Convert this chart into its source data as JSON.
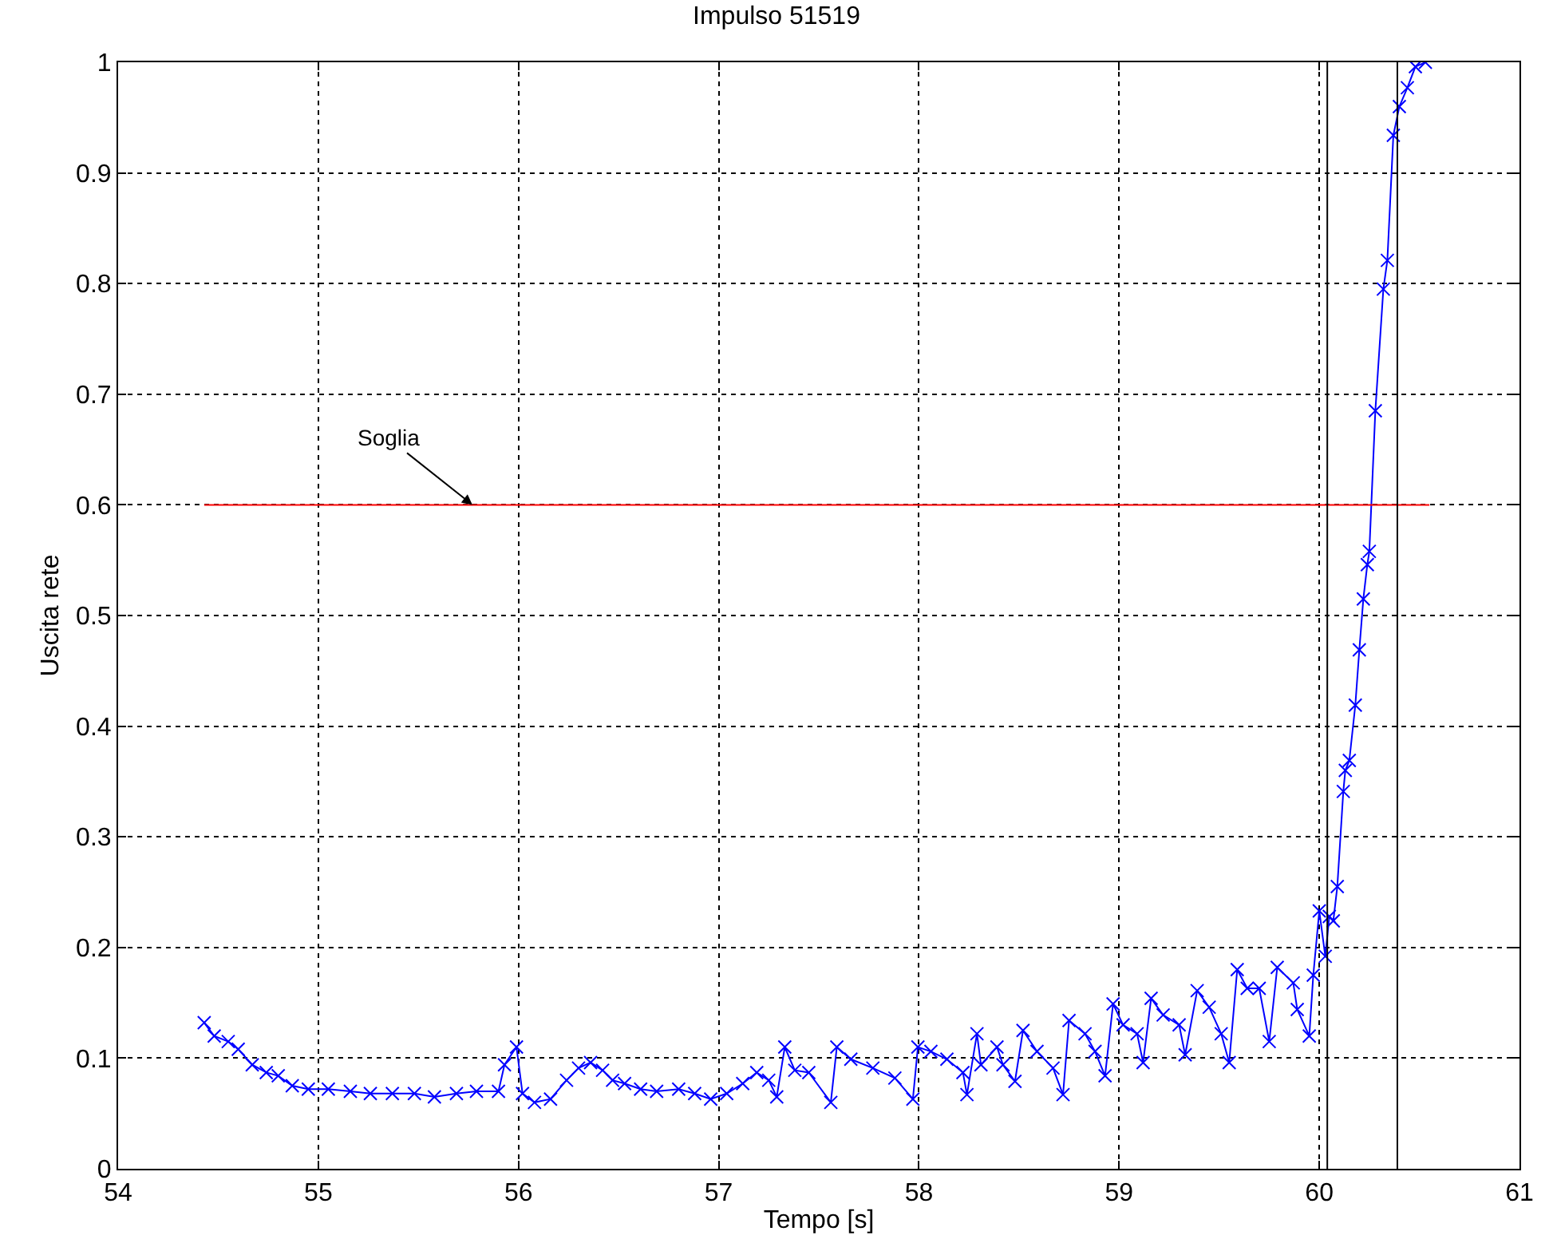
{
  "chart_data": {
    "type": "line",
    "title": "Impulso 51519",
    "xlabel": "Tempo [s]",
    "ylabel": "Uscita rete",
    "xlim": [
      54,
      61
    ],
    "xticks": [
      54,
      55,
      56,
      57,
      58,
      59,
      60,
      61
    ],
    "ylim": [
      0,
      1
    ],
    "yticks": [
      0,
      0.1,
      0.2,
      0.3,
      0.4,
      0.5,
      0.6,
      0.7,
      0.8,
      0.9,
      1
    ],
    "grid": true,
    "marker": "cross",
    "line_style": "solid",
    "annotations": [
      {
        "text": "Soglia",
        "x": 55.77,
        "y": 0.6
      }
    ],
    "ref_lines": [
      {
        "axis": "x",
        "value": 60.04,
        "label": null,
        "color": "#000000"
      },
      {
        "axis": "x",
        "value": 60.39,
        "label": null,
        "color": "#000000"
      }
    ],
    "series": [
      {
        "color": "#0000ff",
        "x": [
          54.43,
          54.48,
          54.55,
          54.6,
          54.67,
          54.74,
          54.8,
          54.87,
          54.95,
          55.05,
          55.16,
          55.26,
          55.37,
          55.48,
          55.58,
          55.69,
          55.79,
          55.9,
          55.93,
          55.99,
          56.02,
          56.08,
          56.16,
          56.24,
          56.3,
          56.36,
          56.42,
          56.47,
          56.53,
          56.61,
          56.69,
          56.8,
          56.88,
          56.96,
          57.04,
          57.12,
          57.19,
          57.25,
          57.29,
          57.33,
          57.38,
          57.45,
          57.56,
          57.59,
          57.66,
          57.77,
          57.88,
          57.97,
          57.995,
          58.06,
          58.14,
          58.22,
          58.24,
          58.29,
          58.31,
          58.39,
          58.42,
          58.48,
          58.52,
          58.59,
          58.67,
          58.72,
          58.75,
          58.83,
          58.88,
          58.93,
          58.97,
          59.02,
          59.09,
          59.12,
          59.16,
          59.22,
          59.3,
          59.33,
          59.39,
          59.45,
          59.51,
          59.55,
          59.59,
          59.64,
          59.7,
          59.75,
          59.79,
          59.87,
          59.89,
          59.95,
          59.97,
          60.0,
          60.03,
          60.05,
          60.07,
          60.09,
          60.12,
          60.13,
          60.15,
          60.18,
          60.2,
          60.22,
          60.24,
          60.25,
          60.28,
          60.32,
          60.34,
          60.37,
          60.4,
          60.44,
          60.48,
          60.53
        ],
        "values": [
          0.132,
          0.12,
          0.115,
          0.108,
          0.094,
          0.087,
          0.084,
          0.075,
          0.072,
          0.072,
          0.07,
          0.068,
          0.068,
          0.068,
          0.065,
          0.068,
          0.07,
          0.07,
          0.094,
          0.11,
          0.068,
          0.06,
          0.063,
          0.08,
          0.091,
          0.096,
          0.089,
          0.08,
          0.077,
          0.072,
          0.07,
          0.072,
          0.068,
          0.063,
          0.068,
          0.077,
          0.087,
          0.08,
          0.065,
          0.11,
          0.089,
          0.087,
          0.06,
          0.11,
          0.099,
          0.091,
          0.082,
          0.063,
          0.11,
          0.106,
          0.099,
          0.087,
          0.067,
          0.122,
          0.094,
          0.11,
          0.094,
          0.079,
          0.125,
          0.106,
          0.091,
          0.067,
          0.134,
          0.122,
          0.106,
          0.084,
          0.149,
          0.13,
          0.122,
          0.096,
          0.154,
          0.139,
          0.13,
          0.103,
          0.161,
          0.146,
          0.122,
          0.096,
          0.18,
          0.163,
          0.163,
          0.115,
          0.182,
          0.168,
          0.144,
          0.12,
          0.175,
          0.233,
          0.192,
          0.228,
          0.224,
          0.255,
          0.341,
          0.36,
          0.369,
          0.419,
          0.469,
          0.515,
          0.546,
          0.558,
          0.685,
          0.795,
          0.821,
          0.934,
          0.96,
          0.977,
          0.996,
          1.0
        ]
      },
      {
        "color": "#ff0000",
        "marker": "none",
        "x": [
          54.43,
          60.55
        ],
        "values": [
          0.6,
          0.6
        ]
      }
    ]
  }
}
